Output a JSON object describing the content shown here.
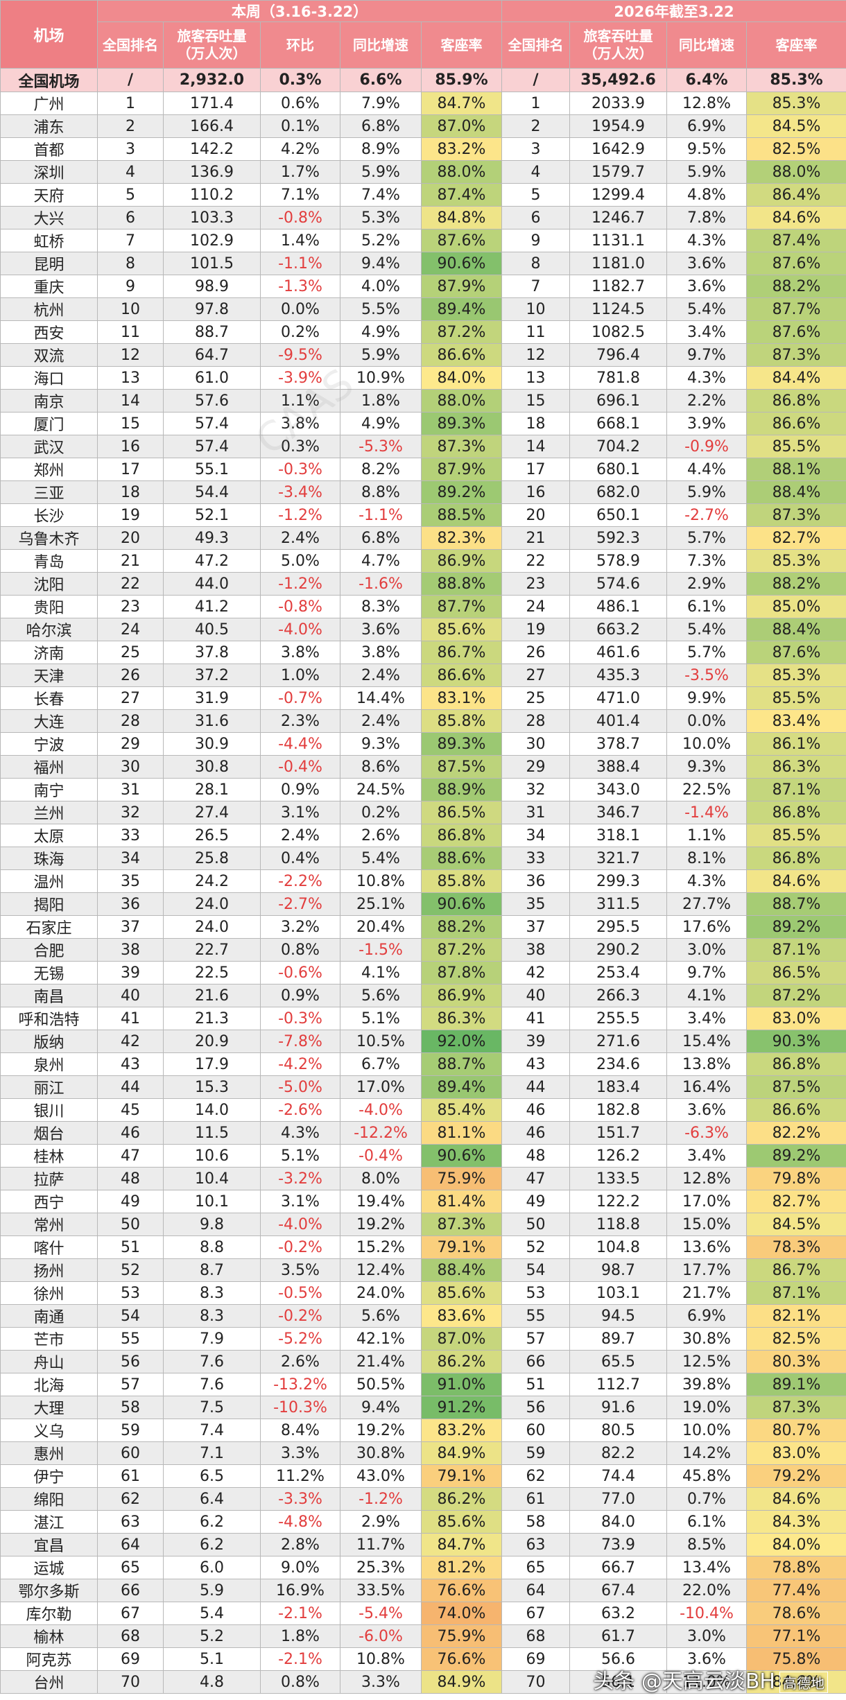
{
  "headers": {
    "airport": "机场",
    "week_group": "本周（3.16-3.22）",
    "ytd_group": "2026年截至3.22",
    "cols_week": [
      "全国排名",
      "旅客吞吐量（万人次）",
      "环比",
      "同比增速",
      "客座率"
    ],
    "cols_ytd": [
      "全国排名",
      "旅客吞吐量（万人次）",
      "同比增速",
      "客座率"
    ]
  },
  "total": [
    "全国机场",
    "/",
    "2,932.0",
    "0.3%",
    "6.6%",
    "85.9%",
    "/",
    "35,492.6",
    "6.4%",
    "85.3%"
  ],
  "rows": [
    [
      "广州",
      "1",
      "171.4",
      "0.6%",
      "7.9%",
      "84.7%",
      "1",
      "2033.9",
      "12.8%",
      "85.3%"
    ],
    [
      "浦东",
      "2",
      "166.4",
      "0.1%",
      "6.8%",
      "87.0%",
      "2",
      "1954.9",
      "6.9%",
      "84.5%"
    ],
    [
      "首都",
      "3",
      "142.2",
      "4.2%",
      "8.9%",
      "83.2%",
      "3",
      "1642.9",
      "9.5%",
      "82.5%"
    ],
    [
      "深圳",
      "4",
      "136.9",
      "1.7%",
      "5.9%",
      "88.0%",
      "4",
      "1579.7",
      "5.9%",
      "88.0%"
    ],
    [
      "天府",
      "5",
      "110.2",
      "7.1%",
      "7.4%",
      "87.4%",
      "5",
      "1299.4",
      "4.8%",
      "86.4%"
    ],
    [
      "大兴",
      "6",
      "103.3",
      "-0.8%",
      "5.3%",
      "84.8%",
      "6",
      "1246.7",
      "7.8%",
      "84.6%"
    ],
    [
      "虹桥",
      "7",
      "102.9",
      "1.4%",
      "5.2%",
      "87.6%",
      "9",
      "1131.1",
      "4.3%",
      "87.4%"
    ],
    [
      "昆明",
      "8",
      "101.5",
      "-1.1%",
      "9.4%",
      "90.6%",
      "8",
      "1181.0",
      "3.6%",
      "87.6%"
    ],
    [
      "重庆",
      "9",
      "98.9",
      "-1.3%",
      "4.0%",
      "87.9%",
      "7",
      "1182.7",
      "3.6%",
      "88.2%"
    ],
    [
      "杭州",
      "10",
      "97.8",
      "0.0%",
      "5.5%",
      "89.4%",
      "10",
      "1124.5",
      "5.4%",
      "87.7%"
    ],
    [
      "西安",
      "11",
      "88.7",
      "0.2%",
      "4.9%",
      "87.2%",
      "11",
      "1082.5",
      "3.4%",
      "87.6%"
    ],
    [
      "双流",
      "12",
      "64.7",
      "-9.5%",
      "5.9%",
      "86.6%",
      "12",
      "796.4",
      "9.7%",
      "87.3%"
    ],
    [
      "海口",
      "13",
      "61.0",
      "-3.9%",
      "10.9%",
      "84.0%",
      "13",
      "781.8",
      "4.3%",
      "84.4%"
    ],
    [
      "南京",
      "14",
      "57.6",
      "1.1%",
      "1.8%",
      "88.0%",
      "15",
      "696.1",
      "2.2%",
      "86.8%"
    ],
    [
      "厦门",
      "15",
      "57.4",
      "3.8%",
      "4.9%",
      "89.3%",
      "18",
      "668.1",
      "3.9%",
      "86.6%"
    ],
    [
      "武汉",
      "16",
      "57.4",
      "0.3%",
      "-5.3%",
      "87.3%",
      "14",
      "704.2",
      "-0.9%",
      "85.5%"
    ],
    [
      "郑州",
      "17",
      "55.1",
      "-0.3%",
      "8.2%",
      "87.9%",
      "17",
      "680.1",
      "4.4%",
      "88.1%"
    ],
    [
      "三亚",
      "18",
      "54.4",
      "-3.4%",
      "8.8%",
      "89.2%",
      "16",
      "682.0",
      "5.9%",
      "88.4%"
    ],
    [
      "长沙",
      "19",
      "52.1",
      "-1.2%",
      "-1.1%",
      "88.5%",
      "20",
      "650.1",
      "-2.7%",
      "87.3%"
    ],
    [
      "乌鲁木齐",
      "20",
      "49.3",
      "2.4%",
      "6.8%",
      "82.3%",
      "21",
      "592.3",
      "5.7%",
      "82.7%"
    ],
    [
      "青岛",
      "21",
      "47.2",
      "5.0%",
      "4.7%",
      "86.9%",
      "22",
      "578.9",
      "7.3%",
      "85.3%"
    ],
    [
      "沈阳",
      "22",
      "44.0",
      "-1.2%",
      "-1.6%",
      "88.8%",
      "23",
      "574.6",
      "2.9%",
      "88.2%"
    ],
    [
      "贵阳",
      "23",
      "41.2",
      "-0.8%",
      "8.3%",
      "87.7%",
      "24",
      "486.1",
      "6.1%",
      "85.0%"
    ],
    [
      "哈尔滨",
      "24",
      "40.5",
      "-4.0%",
      "3.6%",
      "85.6%",
      "19",
      "663.2",
      "5.4%",
      "88.4%"
    ],
    [
      "济南",
      "25",
      "37.8",
      "3.8%",
      "3.8%",
      "86.7%",
      "26",
      "461.6",
      "5.7%",
      "87.6%"
    ],
    [
      "天津",
      "26",
      "37.2",
      "1.0%",
      "2.4%",
      "86.6%",
      "27",
      "435.3",
      "-3.5%",
      "85.3%"
    ],
    [
      "长春",
      "27",
      "31.9",
      "-0.7%",
      "14.4%",
      "83.1%",
      "25",
      "471.0",
      "9.9%",
      "85.5%"
    ],
    [
      "大连",
      "28",
      "31.6",
      "2.3%",
      "2.4%",
      "85.8%",
      "28",
      "401.4",
      "0.0%",
      "83.4%"
    ],
    [
      "宁波",
      "29",
      "30.9",
      "-4.4%",
      "9.3%",
      "89.3%",
      "30",
      "378.7",
      "10.0%",
      "86.1%"
    ],
    [
      "福州",
      "30",
      "30.8",
      "-0.4%",
      "8.6%",
      "87.5%",
      "29",
      "388.4",
      "9.3%",
      "86.3%"
    ],
    [
      "南宁",
      "31",
      "28.1",
      "0.9%",
      "24.5%",
      "88.9%",
      "32",
      "343.0",
      "22.5%",
      "87.1%"
    ],
    [
      "兰州",
      "32",
      "27.4",
      "3.1%",
      "0.2%",
      "86.5%",
      "31",
      "346.7",
      "-1.4%",
      "86.8%"
    ],
    [
      "太原",
      "33",
      "26.5",
      "2.4%",
      "2.6%",
      "86.8%",
      "34",
      "318.1",
      "1.1%",
      "85.5%"
    ],
    [
      "珠海",
      "34",
      "25.8",
      "0.4%",
      "5.4%",
      "88.6%",
      "33",
      "321.7",
      "8.1%",
      "86.8%"
    ],
    [
      "温州",
      "35",
      "24.2",
      "-2.2%",
      "10.8%",
      "85.8%",
      "36",
      "299.3",
      "4.3%",
      "84.6%"
    ],
    [
      "揭阳",
      "36",
      "24.0",
      "-2.7%",
      "25.1%",
      "90.6%",
      "35",
      "311.5",
      "27.7%",
      "88.7%"
    ],
    [
      "石家庄",
      "37",
      "24.0",
      "3.2%",
      "20.4%",
      "88.2%",
      "37",
      "295.5",
      "17.6%",
      "89.2%"
    ],
    [
      "合肥",
      "38",
      "22.7",
      "0.8%",
      "-1.5%",
      "87.2%",
      "38",
      "290.2",
      "3.0%",
      "87.1%"
    ],
    [
      "无锡",
      "39",
      "22.5",
      "-0.6%",
      "4.1%",
      "87.8%",
      "42",
      "253.4",
      "9.7%",
      "86.5%"
    ],
    [
      "南昌",
      "40",
      "21.6",
      "0.9%",
      "5.6%",
      "86.9%",
      "40",
      "266.3",
      "4.1%",
      "87.2%"
    ],
    [
      "呼和浩特",
      "41",
      "21.3",
      "-0.3%",
      "5.1%",
      "86.3%",
      "41",
      "255.5",
      "3.4%",
      "83.0%"
    ],
    [
      "版纳",
      "42",
      "20.9",
      "-7.8%",
      "10.5%",
      "92.0%",
      "39",
      "271.6",
      "15.4%",
      "90.3%"
    ],
    [
      "泉州",
      "43",
      "17.9",
      "-4.2%",
      "6.7%",
      "88.7%",
      "43",
      "234.6",
      "13.8%",
      "86.8%"
    ],
    [
      "丽江",
      "44",
      "15.3",
      "-5.0%",
      "17.0%",
      "89.4%",
      "44",
      "183.4",
      "16.4%",
      "87.5%"
    ],
    [
      "银川",
      "45",
      "14.0",
      "-2.6%",
      "-4.0%",
      "85.4%",
      "46",
      "182.8",
      "3.6%",
      "86.6%"
    ],
    [
      "烟台",
      "46",
      "11.5",
      "4.3%",
      "-12.2%",
      "81.1%",
      "46",
      "151.7",
      "-6.3%",
      "82.2%"
    ],
    [
      "桂林",
      "47",
      "10.6",
      "5.1%",
      "-0.4%",
      "90.6%",
      "48",
      "126.2",
      "3.4%",
      "89.2%"
    ],
    [
      "拉萨",
      "48",
      "10.4",
      "-3.2%",
      "8.0%",
      "75.9%",
      "47",
      "133.5",
      "12.8%",
      "79.8%"
    ],
    [
      "西宁",
      "49",
      "10.1",
      "3.1%",
      "19.4%",
      "81.4%",
      "49",
      "122.2",
      "17.0%",
      "82.7%"
    ],
    [
      "常州",
      "50",
      "9.8",
      "-4.0%",
      "19.2%",
      "87.3%",
      "50",
      "118.8",
      "15.0%",
      "84.5%"
    ],
    [
      "喀什",
      "51",
      "8.8",
      "-0.2%",
      "15.2%",
      "79.1%",
      "52",
      "104.8",
      "13.6%",
      "78.3%"
    ],
    [
      "扬州",
      "52",
      "8.7",
      "3.5%",
      "12.4%",
      "88.4%",
      "54",
      "98.7",
      "17.7%",
      "86.7%"
    ],
    [
      "徐州",
      "53",
      "8.3",
      "-0.5%",
      "24.0%",
      "85.6%",
      "53",
      "103.1",
      "21.7%",
      "87.1%"
    ],
    [
      "南通",
      "54",
      "8.3",
      "-0.2%",
      "5.6%",
      "83.6%",
      "55",
      "94.5",
      "6.9%",
      "82.1%"
    ],
    [
      "芒市",
      "55",
      "7.9",
      "-5.2%",
      "42.1%",
      "87.0%",
      "57",
      "89.7",
      "30.8%",
      "82.5%"
    ],
    [
      "舟山",
      "56",
      "7.6",
      "2.6%",
      "21.4%",
      "86.2%",
      "66",
      "65.5",
      "12.5%",
      "80.3%"
    ],
    [
      "北海",
      "57",
      "7.6",
      "-13.2%",
      "50.5%",
      "91.0%",
      "51",
      "112.7",
      "39.8%",
      "89.1%"
    ],
    [
      "大理",
      "58",
      "7.5",
      "-10.3%",
      "9.4%",
      "91.2%",
      "56",
      "91.6",
      "19.0%",
      "87.3%"
    ],
    [
      "义乌",
      "59",
      "7.4",
      "8.4%",
      "19.2%",
      "83.2%",
      "60",
      "80.5",
      "10.0%",
      "80.7%"
    ],
    [
      "惠州",
      "60",
      "7.1",
      "3.3%",
      "30.8%",
      "84.9%",
      "59",
      "82.2",
      "14.2%",
      "83.0%"
    ],
    [
      "伊宁",
      "61",
      "6.5",
      "11.2%",
      "43.0%",
      "79.1%",
      "62",
      "74.4",
      "45.8%",
      "79.2%"
    ],
    [
      "绵阳",
      "62",
      "6.4",
      "-3.3%",
      "-1.2%",
      "86.2%",
      "61",
      "77.0",
      "0.7%",
      "84.6%"
    ],
    [
      "湛江",
      "63",
      "6.2",
      "-4.8%",
      "2.9%",
      "85.6%",
      "58",
      "84.0",
      "6.1%",
      "84.3%"
    ],
    [
      "宜昌",
      "64",
      "6.2",
      "2.8%",
      "11.7%",
      "84.7%",
      "63",
      "73.9",
      "8.5%",
      "84.0%"
    ],
    [
      "运城",
      "65",
      "6.0",
      "9.0%",
      "25.3%",
      "81.2%",
      "65",
      "66.7",
      "13.4%",
      "78.8%"
    ],
    [
      "鄂尔多斯",
      "66",
      "5.9",
      "16.9%",
      "33.5%",
      "76.6%",
      "64",
      "67.4",
      "22.0%",
      "77.4%"
    ],
    [
      "库尔勒",
      "67",
      "5.4",
      "-2.1%",
      "-5.4%",
      "74.0%",
      "67",
      "63.2",
      "-10.4%",
      "78.6%"
    ],
    [
      "榆林",
      "68",
      "5.2",
      "1.8%",
      "-6.0%",
      "75.9%",
      "68",
      "61.7",
      "3.0%",
      "77.1%"
    ],
    [
      "阿克苏",
      "69",
      "5.1",
      "-2.1%",
      "10.8%",
      "76.6%",
      "69",
      "56.6",
      "3.6%",
      "75.8%"
    ],
    [
      "台州",
      "70",
      "4.8",
      "0.8%",
      "3.3%",
      "84.9%",
      "70",
      "56.1",
      "11.0%",
      "84.6%"
    ]
  ],
  "watermark": "CAAS",
  "credit": {
    "text": "头条 @天高云淡BH",
    "logo": "高德地"
  }
}
